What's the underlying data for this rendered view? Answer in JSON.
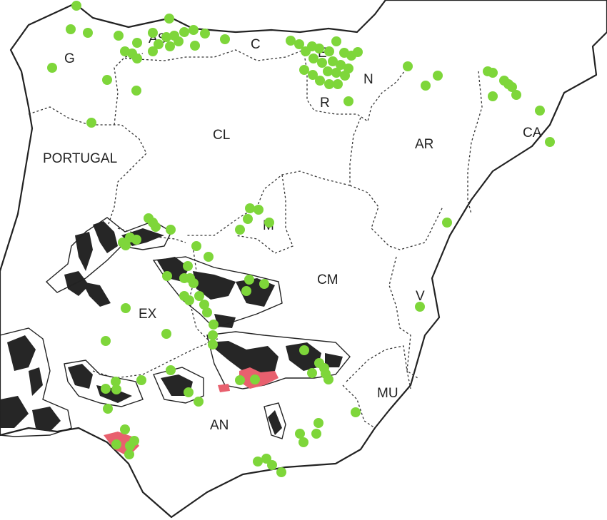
{
  "map": {
    "country_label": "PORTUGAL",
    "regions": [
      {
        "code": "G"
      },
      {
        "code": "AS"
      },
      {
        "code": "C"
      },
      {
        "code": "E"
      },
      {
        "code": "N"
      },
      {
        "code": "R"
      },
      {
        "code": "CL"
      },
      {
        "code": "AR"
      },
      {
        "code": "CA"
      },
      {
        "code": "M"
      },
      {
        "code": "CM"
      },
      {
        "code": "EX"
      },
      {
        "code": "V"
      },
      {
        "code": "MU"
      },
      {
        "code": "AN"
      }
    ],
    "colors": {
      "occurrence_point": "#7ed63a",
      "highlight_area": "#e8606e",
      "dark_area": "#262626",
      "land": "#ffffff",
      "coastline": "#222222"
    }
  }
}
